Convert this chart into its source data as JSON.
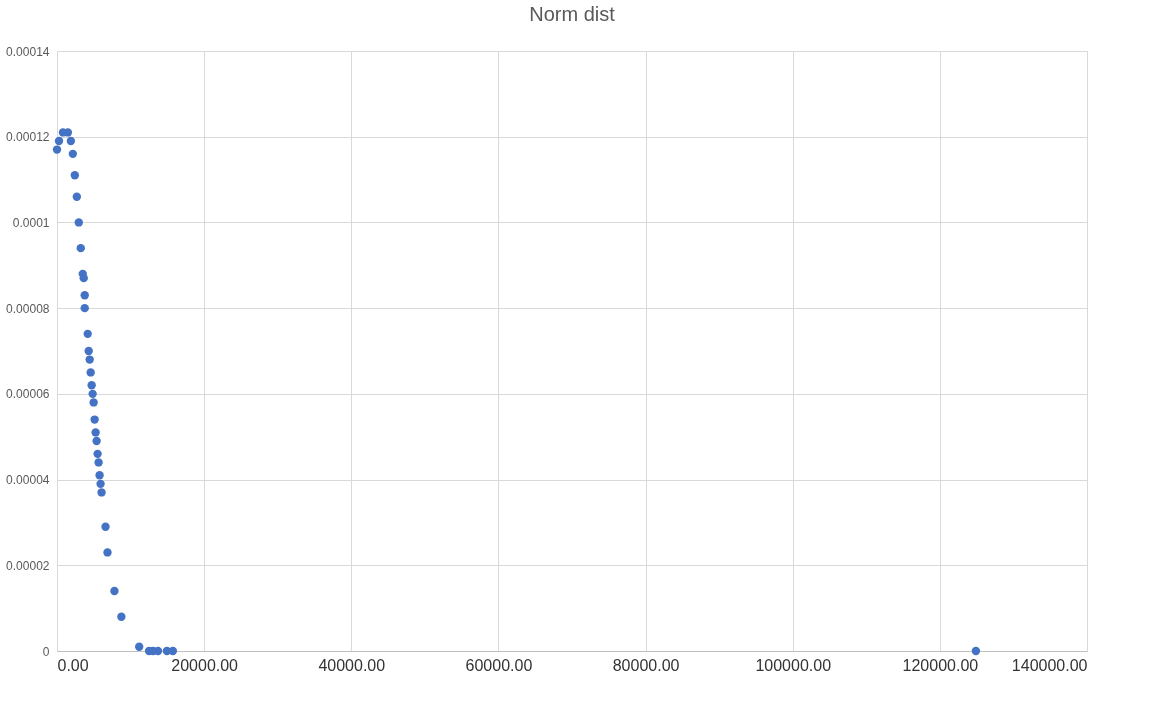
{
  "chart_data": {
    "type": "scatter",
    "title": "Norm dist",
    "x": [
      0,
      270,
      810,
      1480,
      1885,
      2154,
      2423,
      2692,
      2961,
      3230,
      3500,
      3634,
      3769,
      3769,
      4173,
      4307,
      4442,
      4577,
      4711,
      4846,
      4980,
      5115,
      5250,
      5384,
      5519,
      5653,
      5788,
      5923,
      6057,
      6596,
      6865,
      7807,
      8749,
      11172,
      12518,
      13057,
      13730,
      14941,
      15749,
      124900
    ],
    "series": [
      {
        "color": "#4472c4",
        "values": [
          0.000117,
          0.000119,
          0.000121,
          0.000121,
          0.000119,
          0.000116,
          0.000111,
          0.000106,
          0.0001,
          9.4e-05,
          8.8e-05,
          8.7e-05,
          8.3e-05,
          8e-05,
          7.4e-05,
          7e-05,
          6.8e-05,
          6.5e-05,
          6.2e-05,
          6e-05,
          5.8e-05,
          5.4e-05,
          5.1e-05,
          4.9e-05,
          4.6e-05,
          4.4e-05,
          4.1e-05,
          3.9e-05,
          3.7e-05,
          2.9e-05,
          2.3e-05,
          1.4e-05,
          8e-06,
          1e-06,
          0,
          0,
          0,
          0,
          0,
          0
        ]
      }
    ],
    "xlim": [
      0,
      140000
    ],
    "xticks": [
      {
        "value": 0,
        "label": "0.00"
      },
      {
        "value": 20000,
        "label": "20000.00"
      },
      {
        "value": 40000,
        "label": "40000.00"
      },
      {
        "value": 60000,
        "label": "60000.00"
      },
      {
        "value": 80000,
        "label": "80000.00"
      },
      {
        "value": 100000,
        "label": "100000.00"
      },
      {
        "value": 120000,
        "label": "120000.00"
      },
      {
        "value": 140000,
        "label": "140000.00"
      }
    ],
    "ylim": [
      0,
      0.00014
    ],
    "yticks": [
      {
        "value": 0,
        "label": "0"
      },
      {
        "value": 2e-05,
        "label": "0.00002"
      },
      {
        "value": 4e-05,
        "label": "0.00004"
      },
      {
        "value": 6e-05,
        "label": "0.00006"
      },
      {
        "value": 8e-05,
        "label": "0.00008"
      },
      {
        "value": 0.0001,
        "label": "0.0001"
      },
      {
        "value": 0.00012,
        "label": "0.00012"
      },
      {
        "value": 0.00014,
        "label": "0.00014"
      }
    ],
    "grid": true,
    "marker": "circle"
  }
}
